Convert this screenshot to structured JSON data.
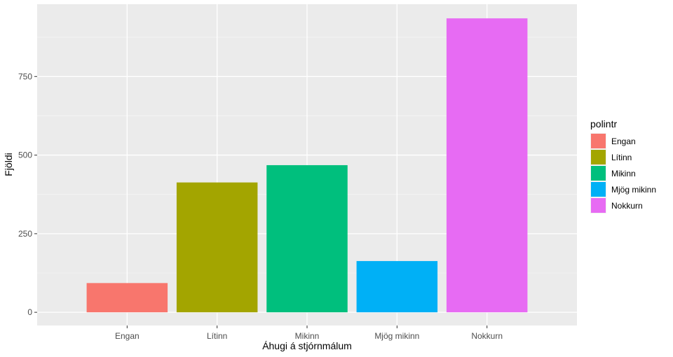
{
  "chart_data": {
    "type": "bar",
    "title": "",
    "xlabel": "Áhugi á stjórnmálum",
    "ylabel": "Fjöldi",
    "categories": [
      "Engan",
      "Lítinn",
      "Mikinn",
      "Mjög mikinn",
      "Nokkurn"
    ],
    "values": [
      93,
      413,
      468,
      163,
      935
    ],
    "ylim": [
      -42,
      980
    ],
    "yticks": [
      0,
      250,
      500,
      750
    ],
    "ytick_labels": [
      "0",
      "250",
      "500",
      "750"
    ],
    "colors": [
      "#F8766D",
      "#A3A500",
      "#00BF7D",
      "#00B0F6",
      "#E76BF3"
    ],
    "grid": true,
    "legend": {
      "title": "polintr",
      "position": "right",
      "entries": [
        "Engan",
        "Lítinn",
        "Mikinn",
        "Mjög mikinn",
        "Nokkurn"
      ]
    }
  }
}
